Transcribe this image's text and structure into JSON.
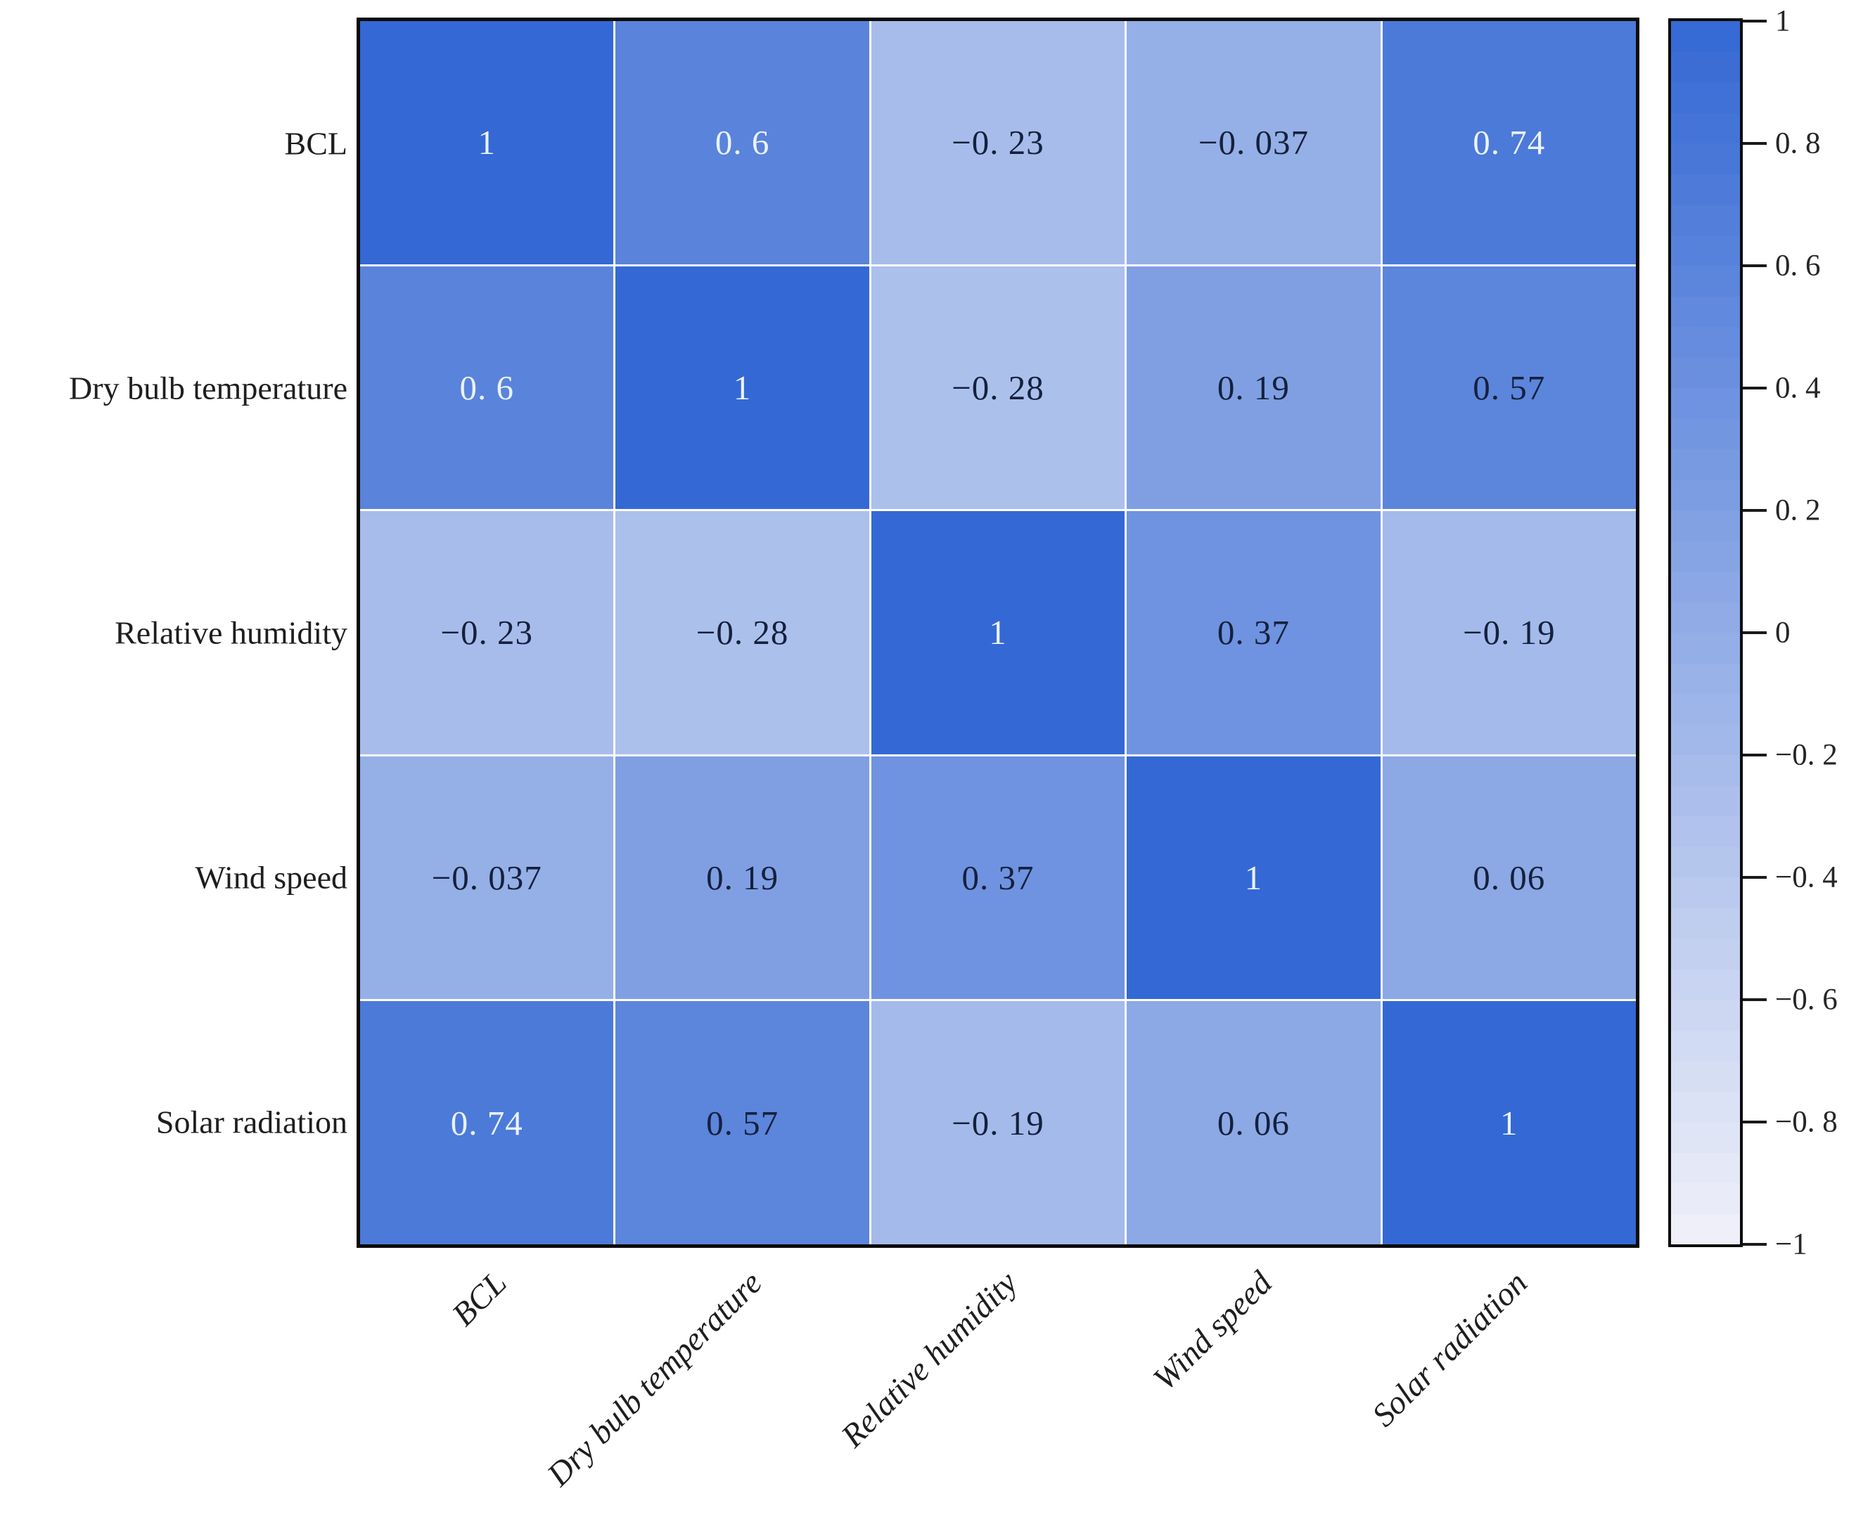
{
  "figure": {
    "background": "#ffffff"
  },
  "chart_data": {
    "type": "heatmap",
    "title": "",
    "variables": [
      "BCL",
      "Dry bulb temperature",
      "Relative humidity",
      "Wind speed",
      "Solar radiation"
    ],
    "matrix": [
      [
        1,
        0.6,
        -0.23,
        -0.037,
        0.74
      ],
      [
        0.6,
        1,
        -0.28,
        0.19,
        0.57
      ],
      [
        -0.23,
        -0.28,
        1,
        0.37,
        -0.19
      ],
      [
        -0.037,
        0.19,
        0.37,
        1,
        0.06
      ],
      [
        0.74,
        0.57,
        -0.19,
        0.06,
        1
      ]
    ],
    "matrix_labels": [
      [
        "1",
        "0. 6",
        "−0. 23",
        "−0. 037",
        "0. 74"
      ],
      [
        "0. 6",
        "1",
        "−0. 28",
        "0. 19",
        "0. 57"
      ],
      [
        "−0. 23",
        "−0. 28",
        "1",
        "0. 37",
        "−0. 19"
      ],
      [
        "−0. 037",
        "0. 19",
        "0. 37",
        "1",
        "0. 06"
      ],
      [
        "0. 74",
        "0. 57",
        "−0. 19",
        "0. 06",
        "1"
      ]
    ],
    "value_range": [
      -1,
      1
    ],
    "colormap": {
      "high_color": "#3468d4",
      "low_color": "#f0f1f9"
    },
    "cell_text_dark": "#14213d",
    "cell_text_light": "#eaf2fc",
    "light_text_threshold": 0.58,
    "grid_line_color": "#fbfcff",
    "border_color": "#0b0b0b",
    "colorbar": {
      "tick_values": [
        1,
        0.8,
        0.6,
        0.4,
        0.2,
        0,
        -0.2,
        -0.4,
        -0.6,
        -0.8,
        -1
      ],
      "tick_labels": [
        "1",
        "0. 8",
        "0. 6",
        "0. 4",
        "0. 2",
        "0",
        "−0. 2",
        "−0. 4",
        "−0. 6",
        "−0. 8",
        "−1"
      ]
    },
    "x_tick_rotation_deg": 45,
    "legend_position": "right-colorbar",
    "grid": "white-cell-separators"
  }
}
